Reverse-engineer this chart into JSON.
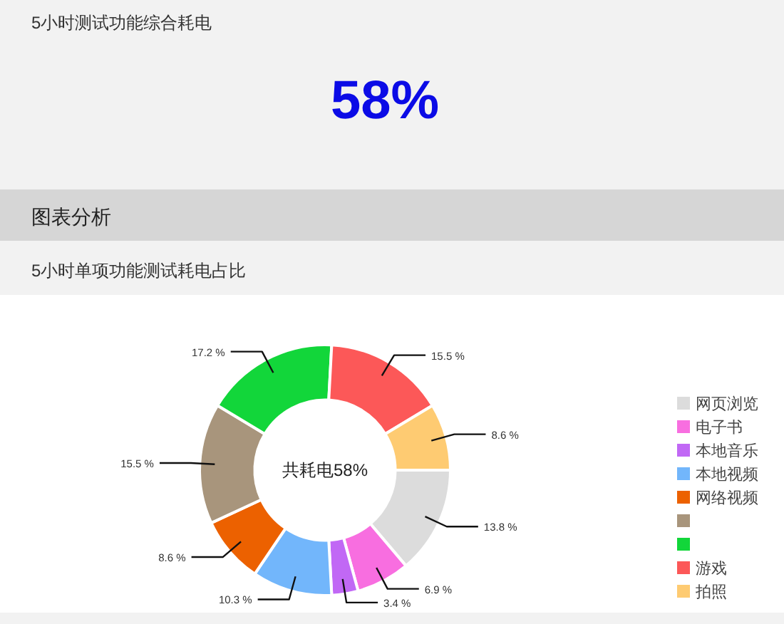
{
  "chart_data": [
    {
      "type": "other",
      "title": "5小时测试功能综合耗电",
      "annotations": [
        "58%"
      ]
    },
    {
      "type": "donut",
      "title": "图表分析",
      "subtitle": "5小时单项功能测试耗电占比",
      "annotations": [
        "共耗电58%"
      ],
      "categories": [
        "网页浏览",
        "电子书",
        "本地音乐",
        "本地视频",
        "网络视频",
        null,
        null,
        "游戏",
        "拍照"
      ],
      "values": [
        13.8,
        6.9,
        3.4,
        10.3,
        8.6,
        15.5,
        17.2,
        15.5,
        8.6
      ],
      "value_labels": [
        "13.8 %",
        "6.9 %",
        "3.4 %",
        "10.3 %",
        "8.6 %",
        "15.5 %",
        "17.2 %",
        "15.5 %",
        "8.6 %"
      ],
      "colors": [
        "#dcdcdc",
        "#f86ee0",
        "#c168f5",
        "#72b6fb",
        "#ec6100",
        "#a8957c",
        "#12d63a",
        "#fc5858",
        "#fecb72"
      ],
      "legend": "right"
    }
  ]
}
